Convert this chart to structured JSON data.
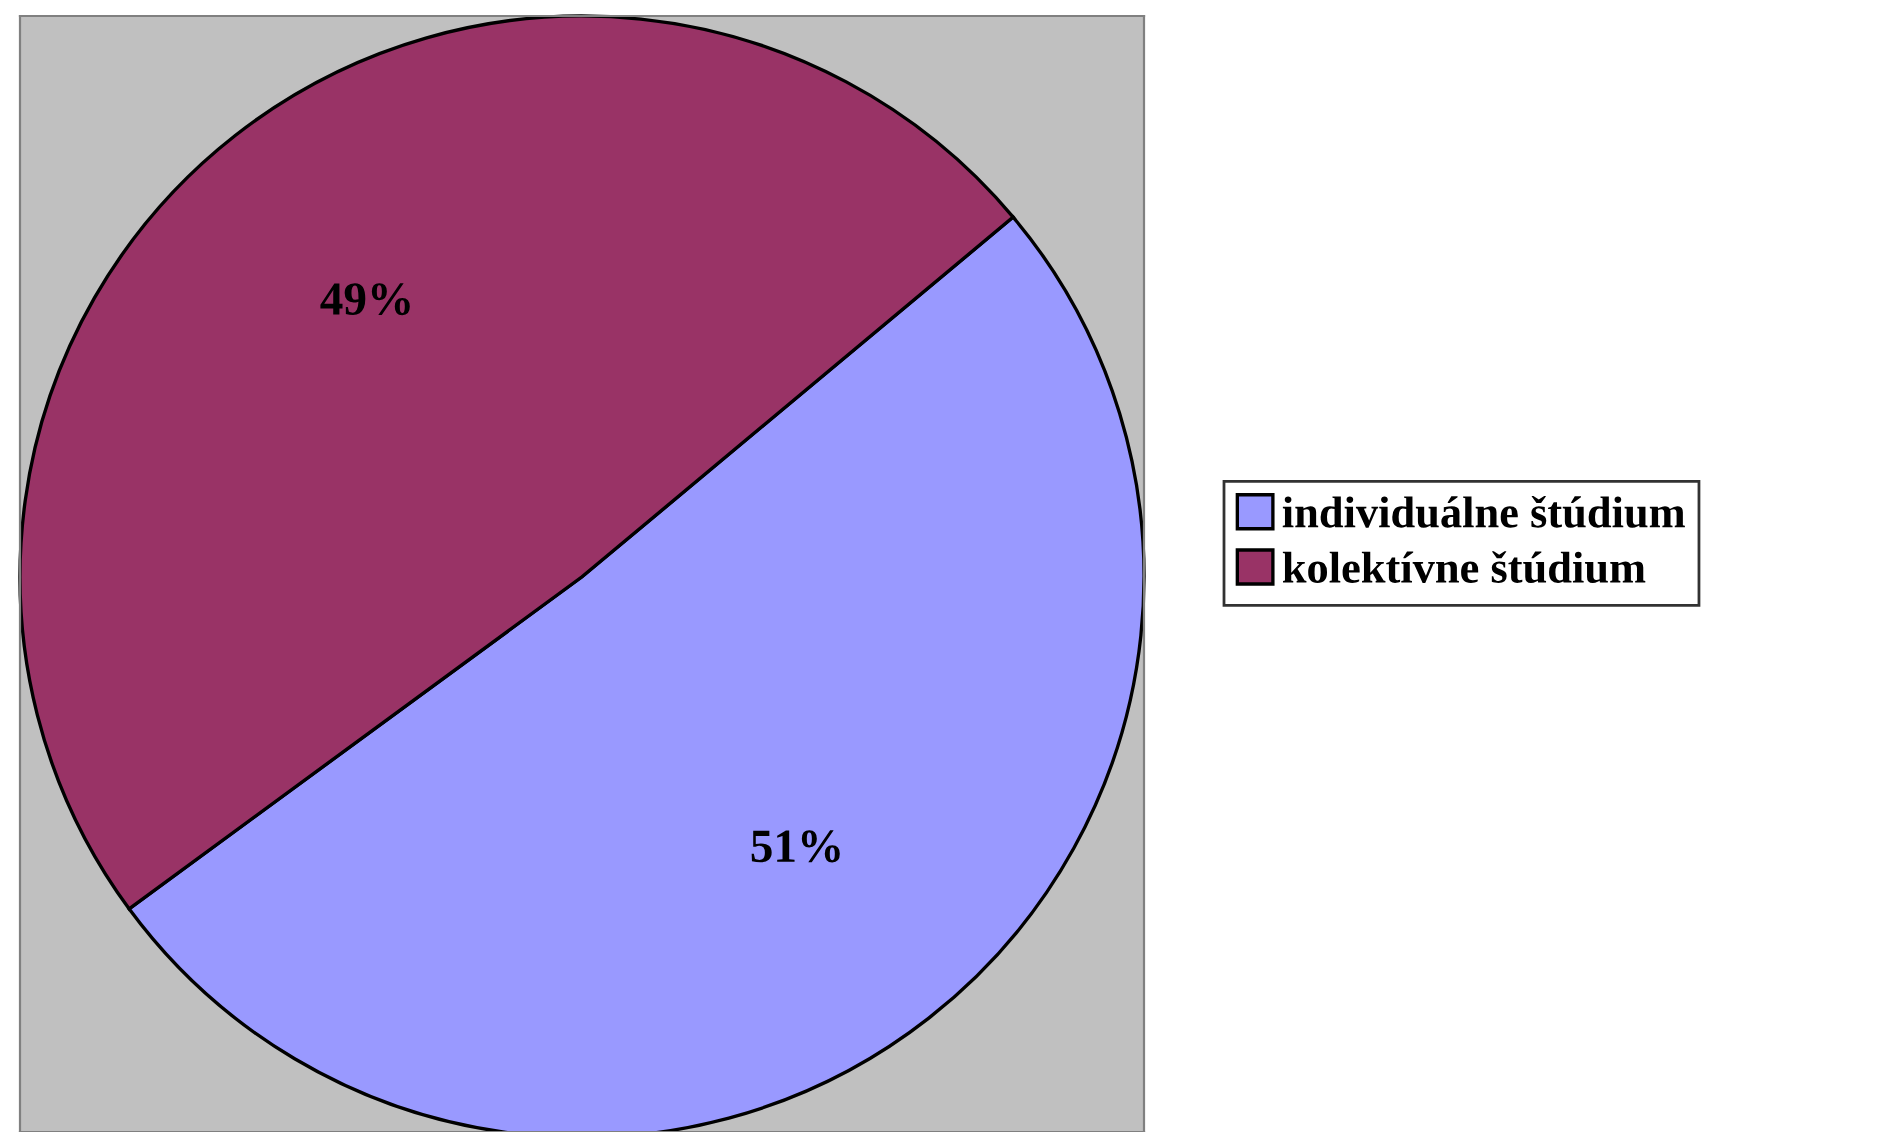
{
  "chart_data": {
    "type": "pie",
    "categories": [
      "individuálne štúdium",
      "kolektívne štúdium"
    ],
    "values": [
      51,
      49
    ],
    "colors": [
      "#9999ff",
      "#993366"
    ],
    "value_labels": [
      "51%",
      "49%"
    ],
    "legend": "right"
  }
}
